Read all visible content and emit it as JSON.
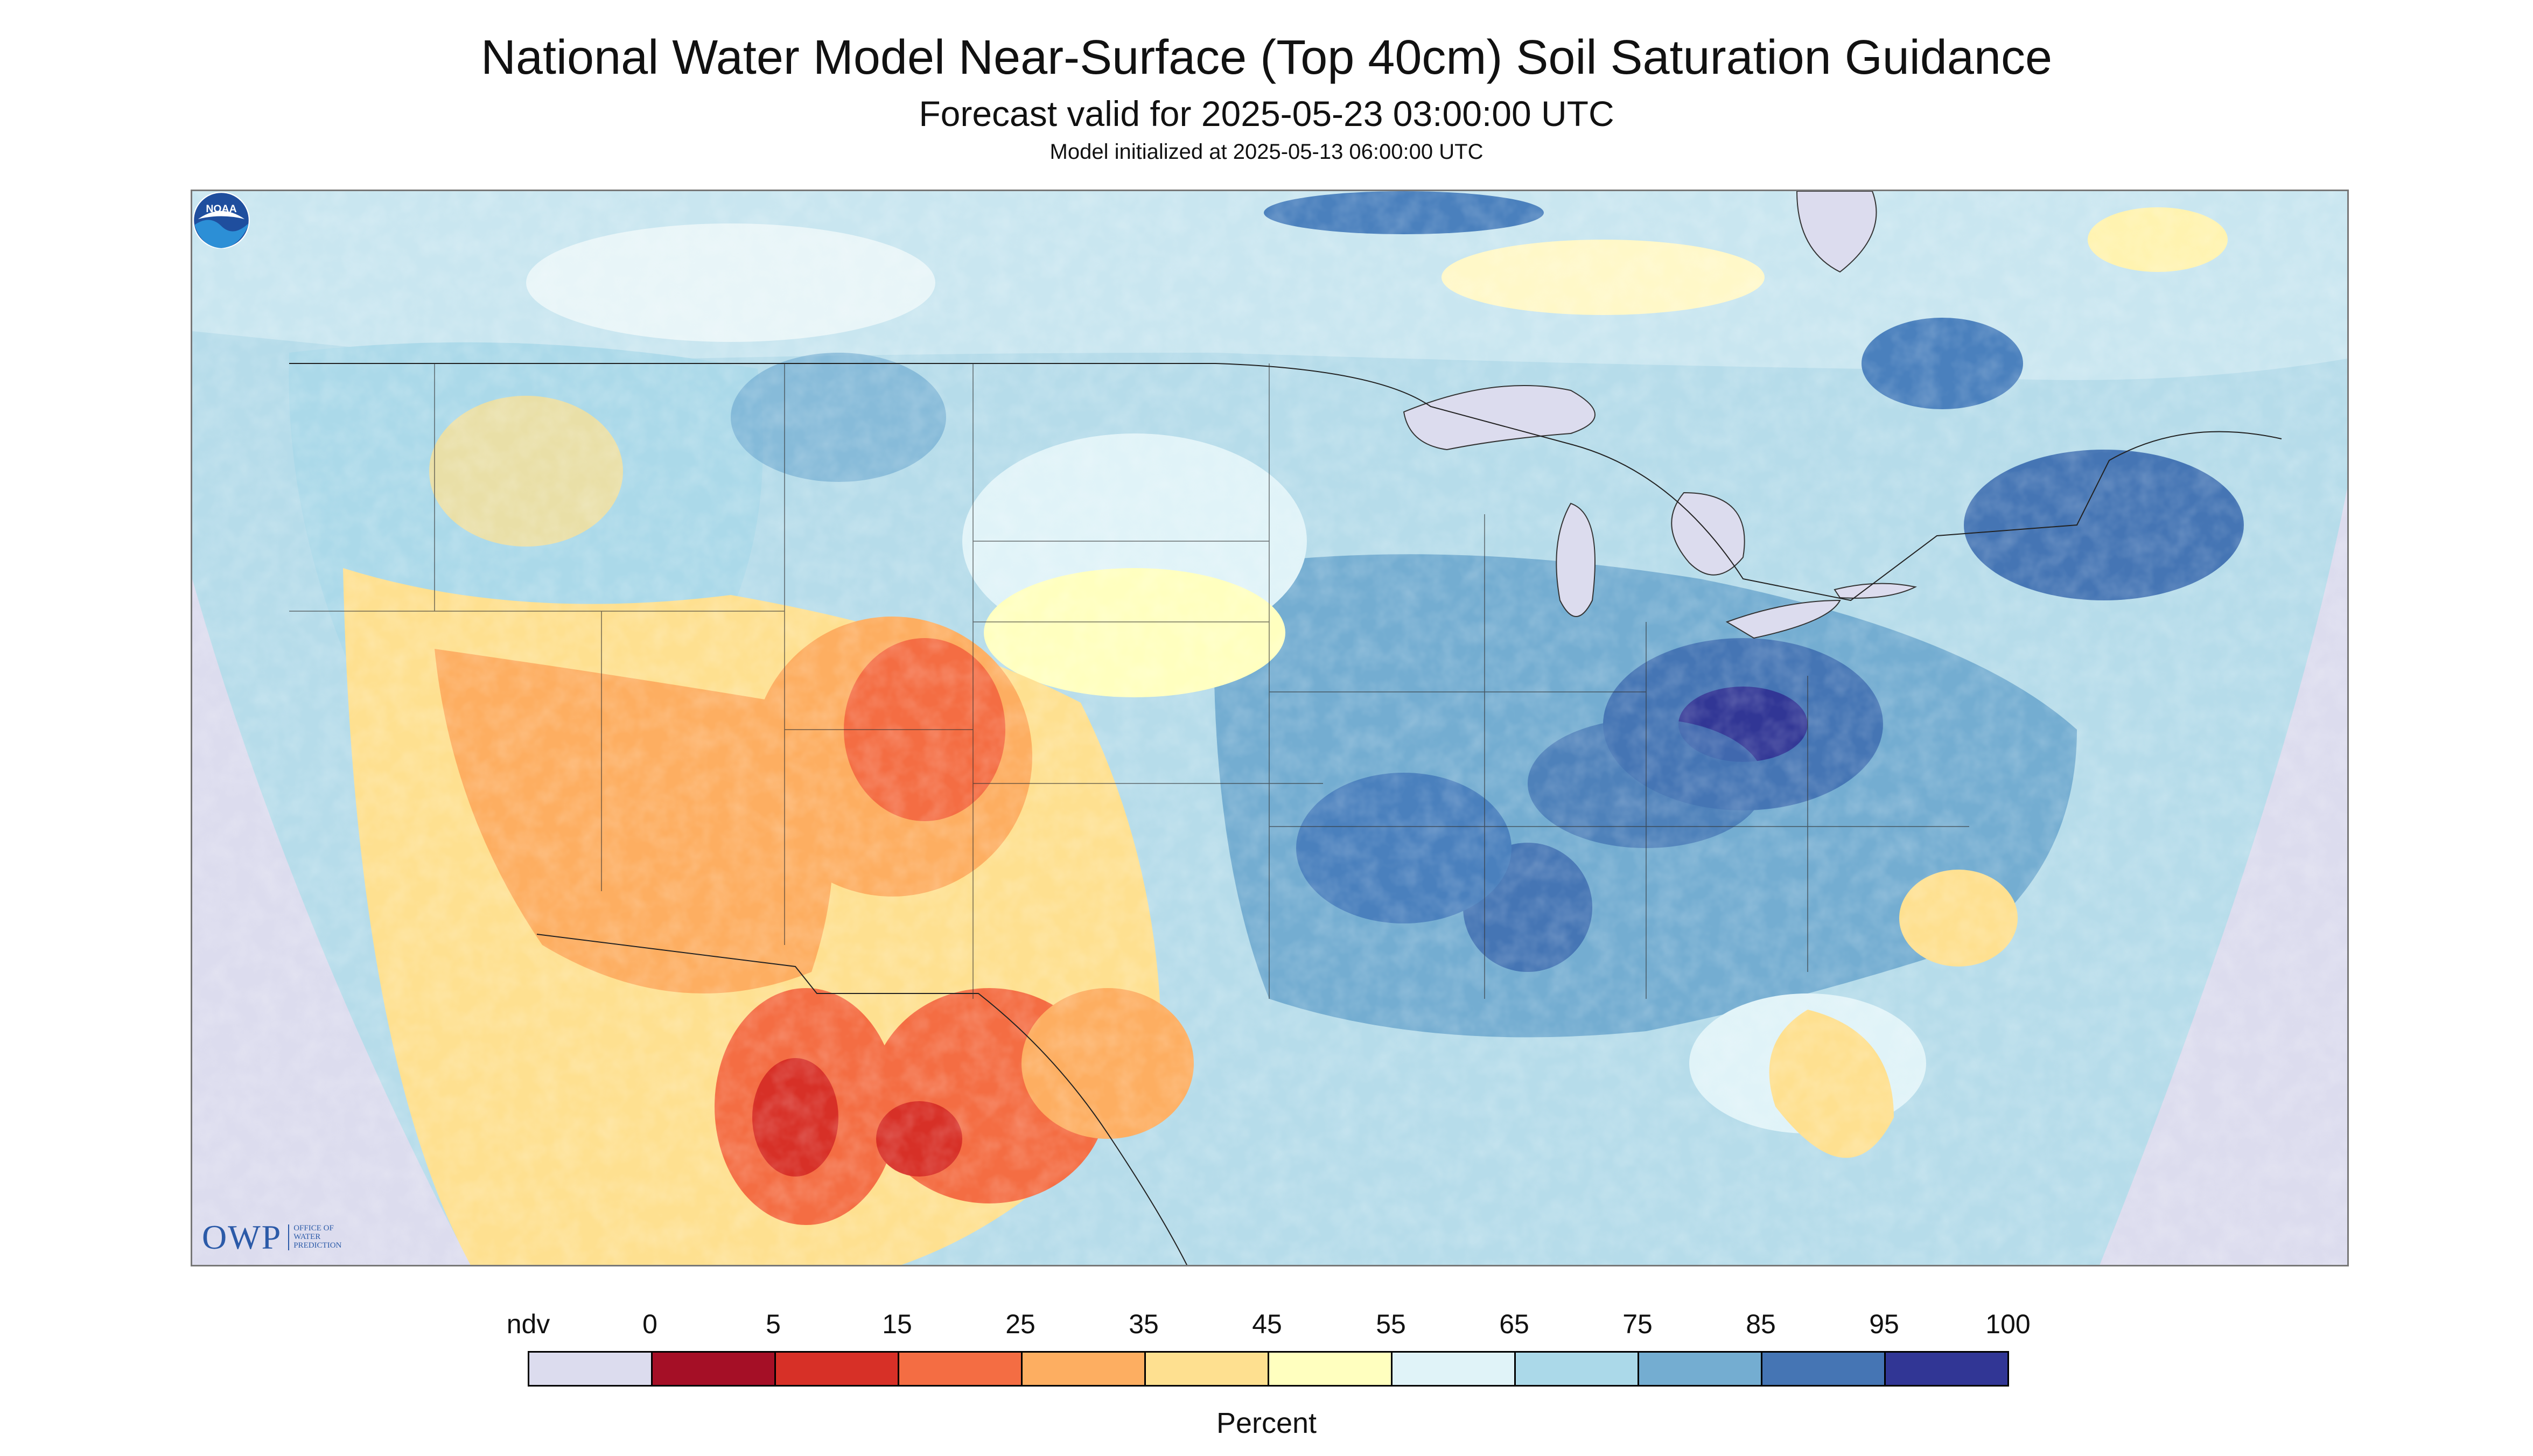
{
  "header": {
    "title": "National Water Model Near-Surface (Top 40cm) Soil Saturation Guidance",
    "subtitle": "Forecast valid for 2025-05-23 03:00:00 UTC",
    "init": "Model initialized at 2025-05-13 06:00:00 UTC"
  },
  "logos": {
    "owp_big": "OWP",
    "owp_small": [
      "OFFICE OF",
      "WATER",
      "PREDICTION"
    ],
    "noaa": "NOAA"
  },
  "legend": {
    "labels": [
      "ndv",
      "0",
      "5",
      "15",
      "25",
      "35",
      "45",
      "55",
      "65",
      "75",
      "85",
      "95",
      "100"
    ],
    "colors": [
      "#dcdcee",
      "#a50f26",
      "#d73027",
      "#f46d43",
      "#fdae61",
      "#fee090",
      "#ffffbf",
      "#e0f3f8",
      "#abd9e9",
      "#74add1",
      "#4575b4",
      "#313695"
    ],
    "unit": "Percent"
  },
  "map": {
    "nodata_color": "#dcdcee",
    "water_color": "#dcdcee",
    "border_color": "#222222"
  }
}
